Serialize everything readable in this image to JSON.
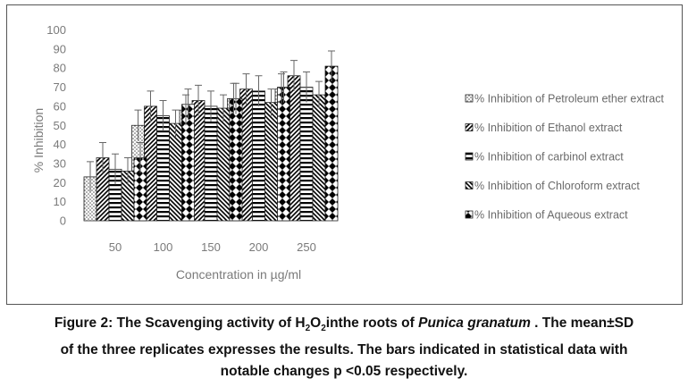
{
  "chart_data": {
    "type": "bar",
    "xlabel": "Concentration in µg/ml",
    "ylabel": "% Inhibition",
    "ylim": [
      0,
      100
    ],
    "ytick_step": 10,
    "categories": [
      "50",
      "100",
      "150",
      "200",
      "250"
    ],
    "legend_position": "right",
    "grid": false,
    "series": [
      {
        "name": "% Inhibition of Petroleum ether extract",
        "pattern": "dots",
        "values": [
          23,
          50,
          58,
          64,
          69
        ],
        "errors": [
          8,
          8,
          8,
          8,
          8
        ]
      },
      {
        "name": "% Inhibition of Ethanol extract",
        "pattern": "diag-right",
        "values": [
          33,
          60,
          63,
          69,
          76
        ],
        "errors": [
          8,
          8,
          8,
          8,
          8
        ]
      },
      {
        "name": "% Inhibition of carbinol extract",
        "pattern": "horizontal",
        "values": [
          27,
          55,
          60,
          68,
          70
        ],
        "errors": [
          8,
          8,
          8,
          8,
          8
        ]
      },
      {
        "name": "% Inhibition of Chloroform extract",
        "pattern": "diag-left",
        "values": [
          26,
          51,
          59,
          62,
          66
        ],
        "errors": [
          7,
          7,
          7,
          7,
          7
        ]
      },
      {
        "name": "% Inhibition of Aqueous extract",
        "pattern": "diamonds",
        "values": [
          33,
          61,
          64,
          70,
          81
        ],
        "errors": [
          8,
          8,
          8,
          8,
          8
        ]
      }
    ]
  },
  "caption": {
    "line1_a": "Figure 2: The Scavenging activity of H",
    "line1_sub1": "2",
    "line1_b": "O",
    "line1_sub2": "2",
    "line1_c": "inthe roots of ",
    "line1_species": "Punica granatum",
    "line1_d": " .  The mean±SD",
    "line2": "of the three replicates expresses the results. The bars indicated in statistical data with",
    "line3": "notable changes p <0.05 respectively."
  }
}
